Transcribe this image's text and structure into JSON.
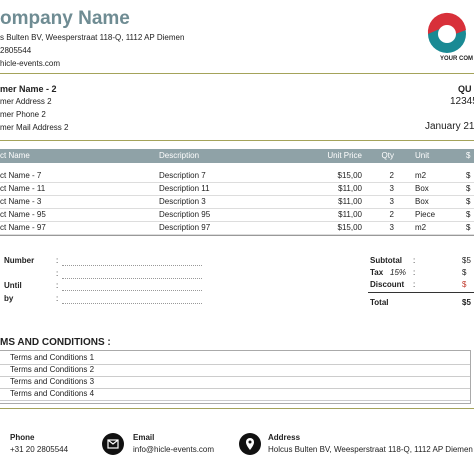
{
  "header": {
    "company": "ompany Name",
    "address": "s Bulten BV, Weesperstraat 118-Q, 1112 AP Diemen",
    "phone": "2805544",
    "email": "hicle-events.com",
    "logo_text": "YOUR COM"
  },
  "customer": {
    "name": "mer Name - 2",
    "address": "mer Address 2",
    "phone": "mer  Phone 2",
    "mail": "mer Mail Address 2"
  },
  "quote": {
    "label": "QU",
    "number": "12345",
    "date": "January 21,"
  },
  "table": {
    "columns": [
      "ct Name",
      "Description",
      "Unit Price",
      "Qty",
      "Unit",
      "$"
    ],
    "rows": [
      [
        "ct Name - 7",
        "Description 7",
        "$15,00",
        "2",
        "m2",
        "$"
      ],
      [
        "ct Name - 11",
        "Description 11",
        "$11,00",
        "3",
        "Box",
        "$"
      ],
      [
        "ct Name - 3",
        "Description 3",
        "$11,00",
        "3",
        "Box",
        "$"
      ],
      [
        "ct Name - 95",
        "Description 95",
        "$11,00",
        "2",
        "Piece",
        "$"
      ],
      [
        "ct Name - 97",
        "Description 97",
        "$15,00",
        "3",
        "m2",
        "$"
      ]
    ]
  },
  "fields": [
    "Number",
    "",
    "Until",
    "by"
  ],
  "separator": ":",
  "totals": {
    "subtotal_label": "Subtotal",
    "subtotal": "$5",
    "tax_label": "Tax",
    "tax_rate": "15%",
    "tax": "$",
    "discount_label": "Discount",
    "discount": "$",
    "total_label": "Total",
    "total": "$5"
  },
  "terms": {
    "title": "MS AND CONDITIONS :",
    "items": [
      "Terms and Conditions 1",
      "Terms and Conditions 2",
      "Terms and Conditions 3",
      "Terms and Conditions 4"
    ]
  },
  "footer": {
    "phone_label": "Phone",
    "phone": "+31 20 2805544",
    "email_label": "Email",
    "email": "info@hicle-events.com",
    "address_label": "Address",
    "address": "Holcus Bulten BV, Weesperstraat 118-Q, 1112 AP Diemen"
  }
}
